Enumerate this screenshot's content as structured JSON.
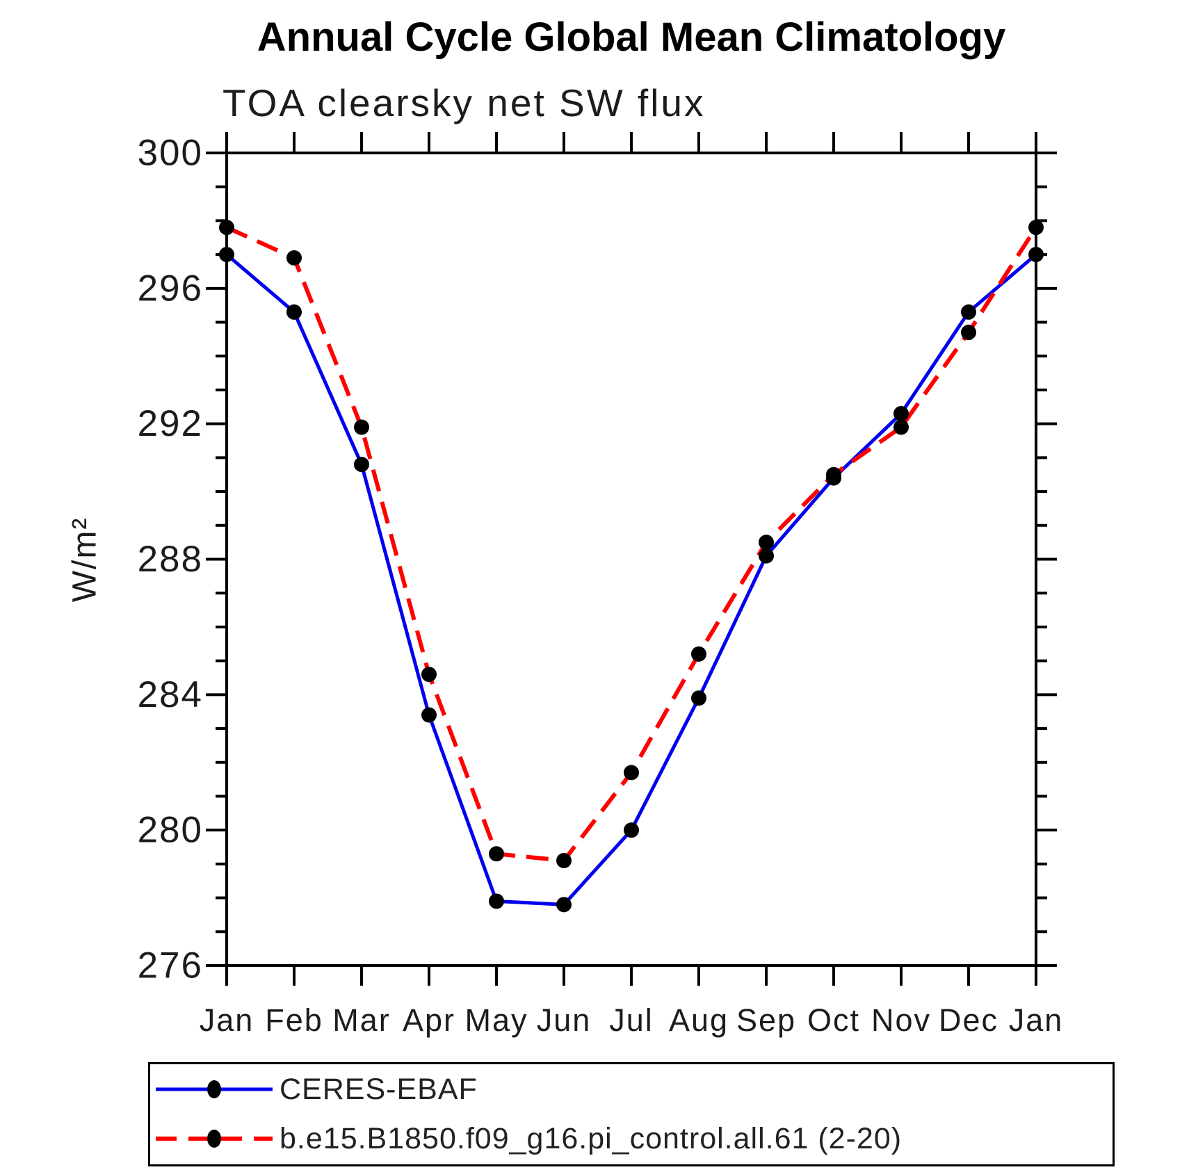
{
  "chart_data": {
    "type": "line",
    "title": "Annual Cycle Global Mean Climatology",
    "subtitle": "TOA clearsky net SW flux",
    "ylabel": "W/m²",
    "xlabel": "",
    "categories": [
      "Jan",
      "Feb",
      "Mar",
      "Apr",
      "May",
      "Jun",
      "Jul",
      "Aug",
      "Sep",
      "Oct",
      "Nov",
      "Dec",
      "Jan"
    ],
    "ylim": [
      276,
      300
    ],
    "ytick_step": 4,
    "yminor_step": 1,
    "yticks": [
      276,
      280,
      284,
      288,
      292,
      296,
      300
    ],
    "grid": false,
    "legend_position": "bottom",
    "series": [
      {
        "name": "CERES-EBAF",
        "color": "#0000ee",
        "style": "solid",
        "marker": "circle",
        "marker_color": "#000000",
        "values": [
          297.0,
          295.3,
          290.8,
          283.4,
          277.9,
          277.8,
          280.0,
          283.9,
          288.1,
          290.4,
          292.3,
          295.3,
          297.0
        ]
      },
      {
        "name": "b.e15.B1850.f09_g16.pi_control.all.61 (2-20)",
        "color": "#ff0000",
        "style": "dashed",
        "marker": "circle",
        "marker_color": "#000000",
        "values": [
          297.8,
          296.9,
          291.9,
          284.6,
          279.3,
          279.1,
          281.7,
          285.2,
          288.5,
          290.5,
          291.9,
          294.7,
          297.8
        ]
      }
    ],
    "axis_color": "#000000",
    "tick_label_color": "#1c1c1c"
  }
}
